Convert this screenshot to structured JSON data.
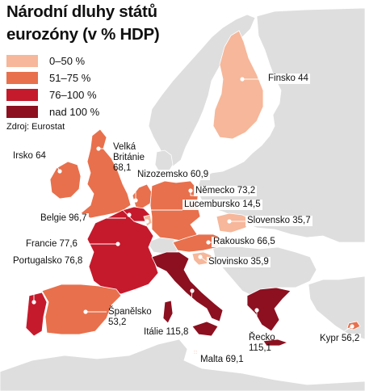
{
  "title_line1": "Národní dluhy států",
  "title_line2": "eurozóny (v % HDP)",
  "source": "Zdroj: Eurostat",
  "colors": {
    "land": "#dedede",
    "sea": "#ffffff",
    "border": "#ffffff",
    "marker": "#ffffff",
    "leader": "#ffffff"
  },
  "legend": [
    {
      "label": "0–50 %",
      "color": "#f6b79a"
    },
    {
      "label": "51–75 %",
      "color": "#e8704c"
    },
    {
      "label": "76–100 %",
      "color": "#c51a2c"
    },
    {
      "label": "nad 100 %",
      "color": "#8c1020"
    }
  ],
  "countries": [
    {
      "id": "finsko",
      "text": "Finsko 44",
      "value": 44,
      "category": 0
    },
    {
      "id": "irsko",
      "text": "Irsko 64",
      "value": 64,
      "category": 1
    },
    {
      "id": "velka-britanie",
      "line1": "Velká",
      "line2": "Británie",
      "line3": "68,1",
      "value": 68.1,
      "category": 1
    },
    {
      "id": "nizozemsko",
      "text": "Nizozemsko 60,9",
      "value": 60.9,
      "category": 1
    },
    {
      "id": "nemecko",
      "text": "Německo 73,2",
      "value": 73.2,
      "category": 1
    },
    {
      "id": "lucembursko",
      "text": "Lucembursko 14,5",
      "value": 14.5,
      "category": 0
    },
    {
      "id": "belgie",
      "text": "Belgie 96,7",
      "value": 96.7,
      "category": 2
    },
    {
      "id": "slovensko",
      "text": "Slovensko 35,7",
      "value": 35.7,
      "category": 0
    },
    {
      "id": "francie",
      "text": "Francie 77,6",
      "value": 77.6,
      "category": 2
    },
    {
      "id": "rakousko",
      "text": "Rakousko 66,5",
      "value": 66.5,
      "category": 1
    },
    {
      "id": "portugalsko",
      "text": "Portugalsko 76,8",
      "value": 76.8,
      "category": 2
    },
    {
      "id": "slovinsko",
      "text": "Slovinsko 35,9",
      "value": 35.9,
      "category": 0
    },
    {
      "id": "spanelsko",
      "line1": "Španělsko",
      "line2": "53,2",
      "value": 53.2,
      "category": 1
    },
    {
      "id": "italie",
      "text": "Itálie 115,8",
      "value": 115.8,
      "category": 3
    },
    {
      "id": "recko",
      "line1": "Řecko",
      "line2": "115,1",
      "value": 115.1,
      "category": 3
    },
    {
      "id": "kypr",
      "text": "Kypr 56,2",
      "value": 56.2,
      "category": 1
    },
    {
      "id": "malta",
      "text": "Malta 69,1",
      "value": 69.1,
      "category": 1
    }
  ]
}
